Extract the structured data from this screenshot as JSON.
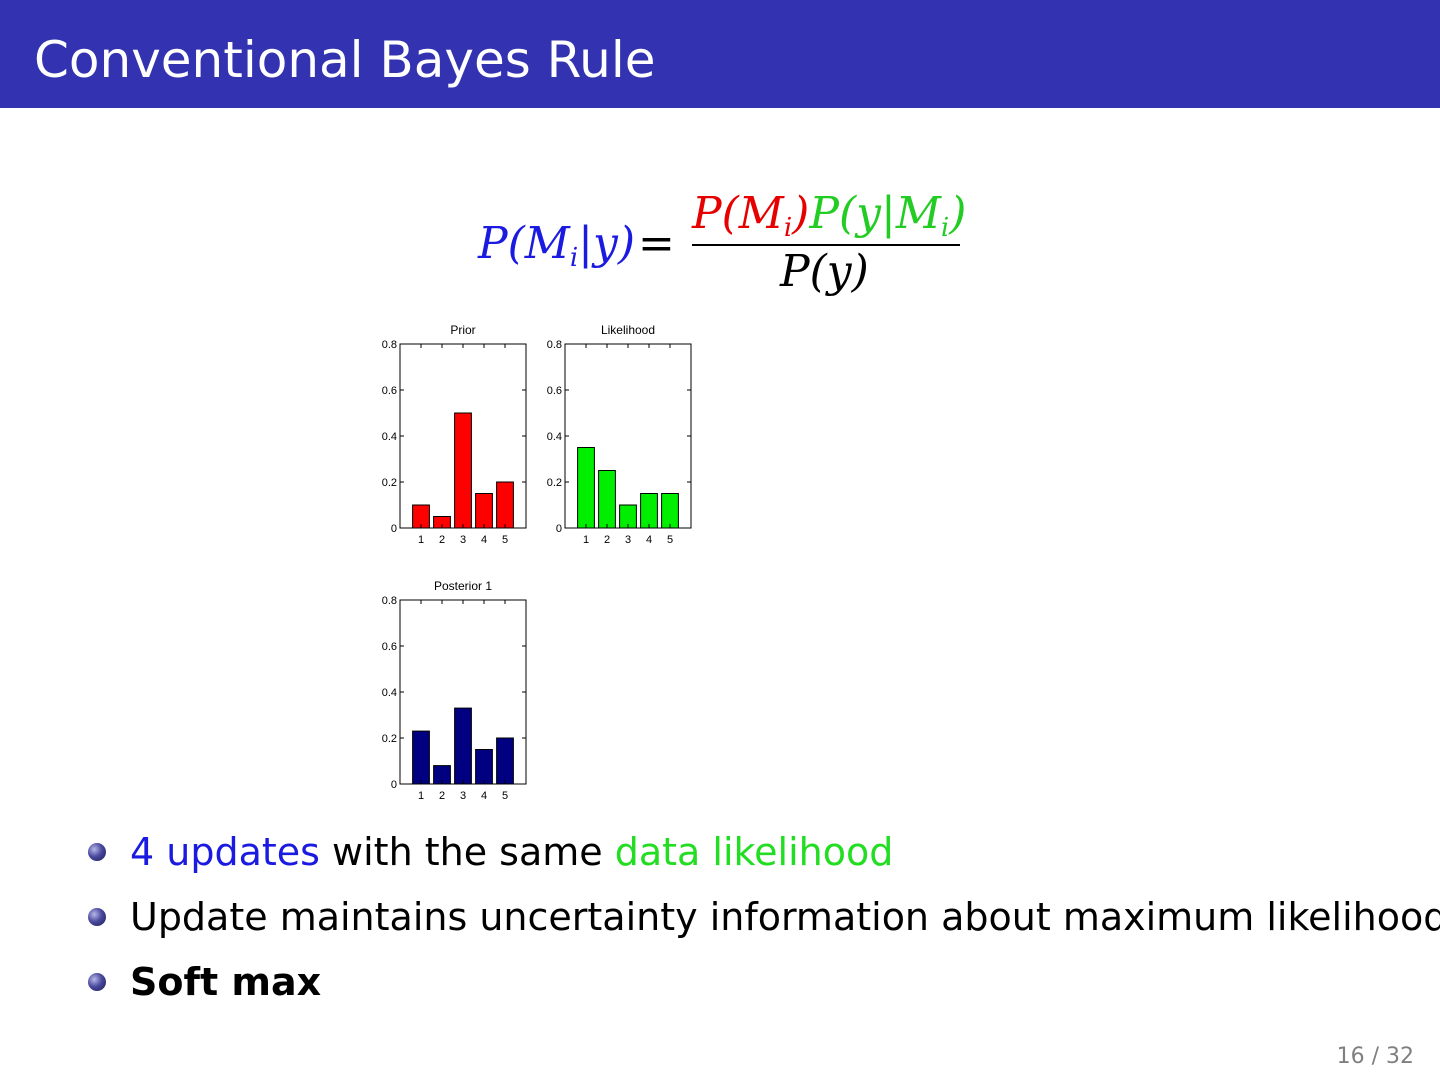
{
  "slide": {
    "title": "Conventional Bayes Rule",
    "page_number": "16 / 32"
  },
  "formula": {
    "lhs": "P(M|y)",
    "equals": "=",
    "numerator_prior": "P(M)",
    "numerator_likelihood": "P(y|M)",
    "denominator": "P(y)",
    "subscript": "i"
  },
  "colors": {
    "header": "#3333b2",
    "posterior": "#1a1ae0",
    "prior": "#e60000",
    "likelihood": "#22cc22"
  },
  "chart_data": [
    {
      "type": "bar",
      "title": "Prior",
      "categories": [
        "1",
        "2",
        "3",
        "4",
        "5"
      ],
      "values": [
        0.1,
        0.05,
        0.5,
        0.15,
        0.2
      ],
      "ylim": [
        0,
        0.8
      ],
      "yticks": [
        "0",
        "0.2",
        "0.4",
        "0.6",
        "0.8"
      ],
      "color": "#ff0000"
    },
    {
      "type": "bar",
      "title": "Likelihood",
      "categories": [
        "1",
        "2",
        "3",
        "4",
        "5"
      ],
      "values": [
        0.35,
        0.25,
        0.1,
        0.15,
        0.15
      ],
      "ylim": [
        0,
        0.8
      ],
      "yticks": [
        "0",
        "0.2",
        "0.4",
        "0.6",
        "0.8"
      ],
      "color": "#00ee00"
    },
    {
      "type": "bar",
      "title": "Posterior 1",
      "categories": [
        "1",
        "2",
        "3",
        "4",
        "5"
      ],
      "values": [
        0.23,
        0.08,
        0.33,
        0.15,
        0.2
      ],
      "ylim": [
        0,
        0.8
      ],
      "yticks": [
        "0",
        "0.2",
        "0.4",
        "0.6",
        "0.8"
      ],
      "color": "#000080"
    }
  ],
  "bullets": [
    {
      "part1": "4 updates",
      "part2": " with the same ",
      "part3": "data likelihood"
    },
    {
      "text": "Update maintains uncertainty information about maximum likelihood"
    },
    {
      "text": "Soft max"
    }
  ]
}
